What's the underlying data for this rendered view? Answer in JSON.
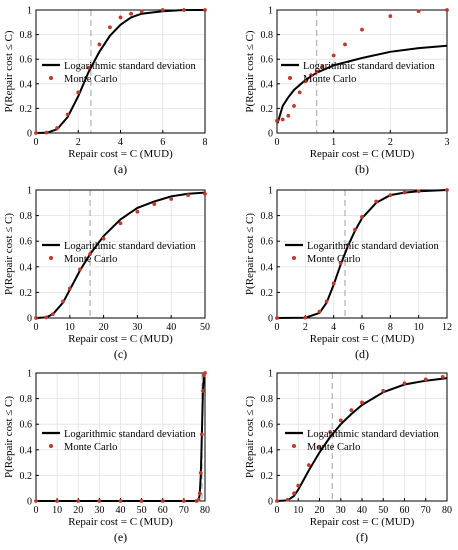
{
  "chart_data": [
    {
      "type": "line",
      "panel_label": "(a)",
      "xlabel": "Repair cost = C (MUD)",
      "ylabel": "P(Repair cost ≤ C)",
      "xlim": [
        0,
        8
      ],
      "ylim": [
        0,
        1.0
      ],
      "xticks": [
        0,
        2,
        4,
        6,
        8
      ],
      "yticks": [
        0,
        0.2,
        0.4,
        0.6,
        0.8,
        1.0
      ],
      "grid": true,
      "legend_position": "center-left",
      "dashed_vline_x": 2.6,
      "series": [
        {
          "name": "Logarithmic standard deviation",
          "style": "solid",
          "color": "#000000",
          "x": [
            0,
            0.5,
            1.0,
            1.5,
            2.0,
            2.5,
            3.0,
            3.5,
            4.0,
            4.5,
            5.0,
            6.0,
            7.0,
            8.0
          ],
          "y": [
            0,
            0.002,
            0.03,
            0.13,
            0.3,
            0.5,
            0.66,
            0.79,
            0.88,
            0.94,
            0.97,
            0.99,
            1.0,
            1.0
          ]
        },
        {
          "name": "Monte Carlo",
          "style": "markers",
          "color": "#c0392b",
          "x": [
            0,
            0.5,
            1.0,
            1.5,
            2.0,
            2.5,
            3.0,
            3.5,
            4.0,
            4.5,
            5.0,
            6.0,
            7.0,
            8.0
          ],
          "y": [
            0,
            0.003,
            0.04,
            0.15,
            0.33,
            0.53,
            0.72,
            0.86,
            0.94,
            0.97,
            0.99,
            1.0,
            1.0,
            1.0
          ]
        }
      ]
    },
    {
      "type": "line",
      "panel_label": "(b)",
      "xlabel": "Repair cost = C (MUD)",
      "ylabel": "P(Repair cost ≤ C)",
      "xlim": [
        0,
        3
      ],
      "ylim": [
        0,
        1.0
      ],
      "xticks": [
        0,
        1,
        2,
        3
      ],
      "yticks": [
        0,
        0.2,
        0.4,
        0.6,
        0.8,
        1.0
      ],
      "grid": true,
      "legend_position": "top-left",
      "dashed_vline_x": 0.7,
      "series": [
        {
          "name": "Logarithmic standard deviation",
          "style": "solid",
          "color": "#000000",
          "x": [
            0.01,
            0.1,
            0.2,
            0.3,
            0.5,
            0.7,
            1.0,
            1.5,
            2.0,
            2.5,
            3.0
          ],
          "y": [
            0.08,
            0.22,
            0.29,
            0.35,
            0.43,
            0.49,
            0.55,
            0.61,
            0.66,
            0.69,
            0.71
          ]
        },
        {
          "name": "Monte Carlo",
          "style": "markers",
          "color": "#c0392b",
          "x": [
            0,
            0.1,
            0.2,
            0.3,
            0.4,
            0.5,
            0.6,
            0.7,
            0.8,
            1.0,
            1.2,
            1.5,
            2.0,
            2.5,
            3.0
          ],
          "y": [
            0.1,
            0.11,
            0.14,
            0.22,
            0.33,
            0.42,
            0.47,
            0.5,
            0.54,
            0.63,
            0.72,
            0.84,
            0.95,
            0.99,
            1.0
          ]
        }
      ]
    },
    {
      "type": "line",
      "panel_label": "(c)",
      "xlabel": "Repair cost = C (MUD)",
      "ylabel": "P(Repair cost ≤ C)",
      "xlim": [
        0,
        50
      ],
      "ylim": [
        0,
        1.0
      ],
      "xticks": [
        0,
        10,
        20,
        30,
        40,
        50
      ],
      "yticks": [
        0,
        0.2,
        0.4,
        0.6,
        0.8,
        1.0
      ],
      "grid": true,
      "legend_position": "center-left",
      "dashed_vline_x": 16,
      "series": [
        {
          "name": "Logarithmic standard deviation",
          "style": "solid",
          "color": "#000000",
          "x": [
            0,
            3,
            5,
            8,
            10,
            13,
            16,
            20,
            25,
            30,
            35,
            40,
            45,
            50
          ],
          "y": [
            0,
            0.005,
            0.03,
            0.12,
            0.22,
            0.37,
            0.5,
            0.64,
            0.77,
            0.86,
            0.91,
            0.95,
            0.97,
            0.98
          ]
        },
        {
          "name": "Monte Carlo",
          "style": "markers",
          "color": "#c0392b",
          "x": [
            0,
            3,
            5,
            8,
            10,
            13,
            16,
            20,
            25,
            30,
            35,
            40,
            45,
            50
          ],
          "y": [
            0,
            0.005,
            0.03,
            0.13,
            0.23,
            0.38,
            0.5,
            0.62,
            0.74,
            0.83,
            0.89,
            0.93,
            0.96,
            0.97
          ]
        }
      ]
    },
    {
      "type": "line",
      "panel_label": "(d)",
      "xlabel": "Repair cost = C (MUD)",
      "ylabel": "P(Repair cost ≤ C)",
      "xlim": [
        0,
        12
      ],
      "ylim": [
        0,
        1.0
      ],
      "xticks": [
        0,
        2,
        4,
        6,
        8,
        10,
        12
      ],
      "yticks": [
        0,
        0.2,
        0.4,
        0.6,
        0.8,
        1.0
      ],
      "grid": true,
      "legend_position": "center-left",
      "dashed_vline_x": 4.8,
      "series": [
        {
          "name": "Logarithmic standard deviation",
          "style": "solid",
          "color": "#000000",
          "x": [
            0,
            2,
            3,
            3.5,
            4,
            4.5,
            5,
            5.5,
            6,
            7,
            8,
            9,
            10,
            12
          ],
          "y": [
            0,
            0.002,
            0.04,
            0.12,
            0.26,
            0.42,
            0.56,
            0.68,
            0.78,
            0.9,
            0.96,
            0.98,
            0.99,
            1.0
          ]
        },
        {
          "name": "Monte Carlo",
          "style": "markers",
          "color": "#c0392b",
          "x": [
            0,
            2,
            3,
            3.5,
            4,
            4.5,
            5,
            5.5,
            6,
            7,
            8,
            9,
            10,
            12
          ],
          "y": [
            0,
            0.003,
            0.05,
            0.13,
            0.27,
            0.43,
            0.57,
            0.69,
            0.79,
            0.91,
            0.96,
            0.98,
            0.99,
            1.0
          ]
        }
      ]
    },
    {
      "type": "line",
      "panel_label": "(e)",
      "xlabel": "Repair cost = C (MUD)",
      "ylabel": "P(Repair cost ≤ C)",
      "xlim": [
        0,
        80
      ],
      "ylim": [
        0,
        1.0
      ],
      "xticks": [
        0,
        10,
        20,
        30,
        40,
        50,
        60,
        70,
        80
      ],
      "yticks": [
        0,
        0.2,
        0.4,
        0.6,
        0.8,
        1.0
      ],
      "grid": true,
      "legend_position": "center-left",
      "dashed_vline_x": 78.6,
      "series": [
        {
          "name": "Logarithmic standard deviation",
          "style": "solid",
          "color": "#000000",
          "x": [
            0,
            76,
            77,
            77.5,
            78,
            78.5,
            79,
            79.5,
            80
          ],
          "y": [
            0,
            0,
            0.01,
            0.05,
            0.2,
            0.5,
            0.85,
            0.98,
            1.0
          ]
        },
        {
          "name": "Monte Carlo",
          "style": "markers",
          "color": "#c0392b",
          "x": [
            0,
            10,
            20,
            30,
            40,
            50,
            60,
            70,
            76,
            77,
            77.5,
            78,
            78.5,
            79,
            79.5,
            80
          ],
          "y": [
            0,
            0,
            0,
            0,
            0,
            0,
            0,
            0,
            0,
            0.01,
            0.06,
            0.22,
            0.52,
            0.86,
            0.98,
            1.0
          ]
        }
      ]
    },
    {
      "type": "line",
      "panel_label": "(f)",
      "xlabel": "Repair cost = C (MUD)",
      "ylabel": "P(Repair cost ≤ C)",
      "xlim": [
        0,
        80
      ],
      "ylim": [
        0,
        1.0
      ],
      "xticks": [
        0,
        10,
        20,
        30,
        40,
        50,
        60,
        70,
        80
      ],
      "yticks": [
        0,
        0.2,
        0.4,
        0.6,
        0.8,
        1.0
      ],
      "grid": true,
      "legend_position": "center-left",
      "dashed_vline_x": 26,
      "series": [
        {
          "name": "Logarithmic standard deviation",
          "style": "solid",
          "color": "#000000",
          "x": [
            0,
            5,
            8,
            10,
            15,
            20,
            25,
            30,
            35,
            40,
            50,
            60,
            70,
            80
          ],
          "y": [
            0,
            0.005,
            0.04,
            0.09,
            0.24,
            0.38,
            0.5,
            0.6,
            0.68,
            0.75,
            0.85,
            0.91,
            0.94,
            0.96
          ]
        },
        {
          "name": "Monte Carlo",
          "style": "markers",
          "color": "#c0392b",
          "x": [
            0,
            5,
            8,
            10,
            15,
            20,
            25,
            30,
            35,
            40,
            50,
            60,
            70,
            78
          ],
          "y": [
            0,
            0.01,
            0.06,
            0.12,
            0.28,
            0.42,
            0.54,
            0.63,
            0.71,
            0.77,
            0.86,
            0.92,
            0.95,
            0.97
          ]
        }
      ]
    }
  ]
}
